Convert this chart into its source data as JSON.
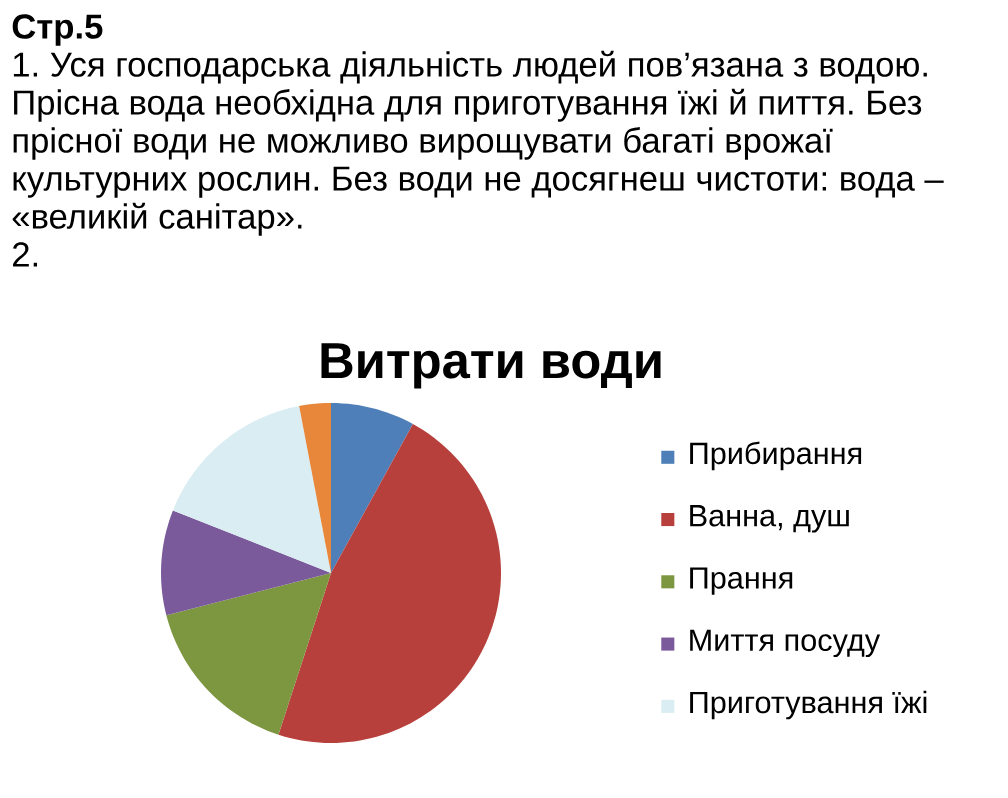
{
  "chart_data": {
    "type": "pie",
    "title": "Витрати води",
    "categories": [
      "Прибирання",
      "Ванна, душ",
      "Прання",
      "Миття посуду",
      "Приготування їжі",
      null
    ],
    "values": [
      8,
      47,
      16,
      10,
      16,
      3
    ],
    "colors": [
      "#4f7fb8",
      "#b8403c",
      "#7d9640",
      "#7a5a9a",
      "#d9edf2",
      "#e8863a"
    ],
    "legend": "right",
    "annotations": [
      "Стр.5",
      "1. Уся господарська діяльність людей пов’язана з водою.",
      "Прісна вода необхідна для приготування їжі й пиття. Без",
      "прісної води не можливо вирощувати багаті врожаї",
      "культурних рослин. Без води не досягнеш чистоти: вода –",
      "«великій санітар».",
      "2."
    ]
  }
}
